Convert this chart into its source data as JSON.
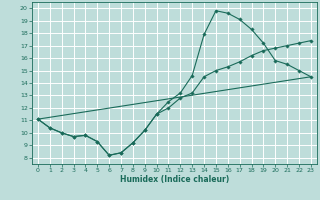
{
  "xlabel": "Humidex (Indice chaleur)",
  "xlim": [
    -0.5,
    23.5
  ],
  "ylim": [
    7.5,
    20.5
  ],
  "xticks": [
    0,
    1,
    2,
    3,
    4,
    5,
    6,
    7,
    8,
    9,
    10,
    11,
    12,
    13,
    14,
    15,
    16,
    17,
    18,
    19,
    20,
    21,
    22,
    23
  ],
  "yticks": [
    8,
    9,
    10,
    11,
    12,
    13,
    14,
    15,
    16,
    17,
    18,
    19,
    20
  ],
  "bg_color": "#beddda",
  "grid_color": "#ffffff",
  "line_color": "#1a6b5a",
  "line1_x": [
    0,
    1,
    2,
    3,
    4,
    5,
    6,
    7,
    8,
    9,
    10,
    11,
    12,
    13,
    14,
    15,
    16,
    17,
    18,
    19,
    20,
    21,
    22,
    23
  ],
  "line1_y": [
    11.1,
    10.4,
    10.0,
    9.7,
    9.8,
    9.3,
    8.2,
    8.4,
    9.2,
    10.2,
    11.5,
    12.5,
    13.2,
    14.6,
    17.9,
    19.8,
    19.6,
    19.1,
    18.3,
    17.2,
    15.8,
    15.5,
    15.0,
    14.5
  ],
  "line2_x": [
    0,
    1,
    2,
    3,
    4,
    5,
    6,
    7,
    8,
    9,
    10,
    11,
    12,
    13,
    14,
    15,
    16,
    17,
    18,
    19,
    20,
    21,
    22,
    23
  ],
  "line2_y": [
    11.1,
    10.4,
    10.0,
    9.7,
    9.8,
    9.3,
    8.2,
    8.4,
    9.2,
    10.2,
    11.5,
    12.0,
    12.8,
    13.2,
    14.5,
    15.0,
    15.3,
    15.7,
    16.2,
    16.6,
    16.8,
    17.0,
    17.2,
    17.4
  ],
  "line3_x": [
    0,
    23
  ],
  "line3_y": [
    11.1,
    14.5
  ]
}
